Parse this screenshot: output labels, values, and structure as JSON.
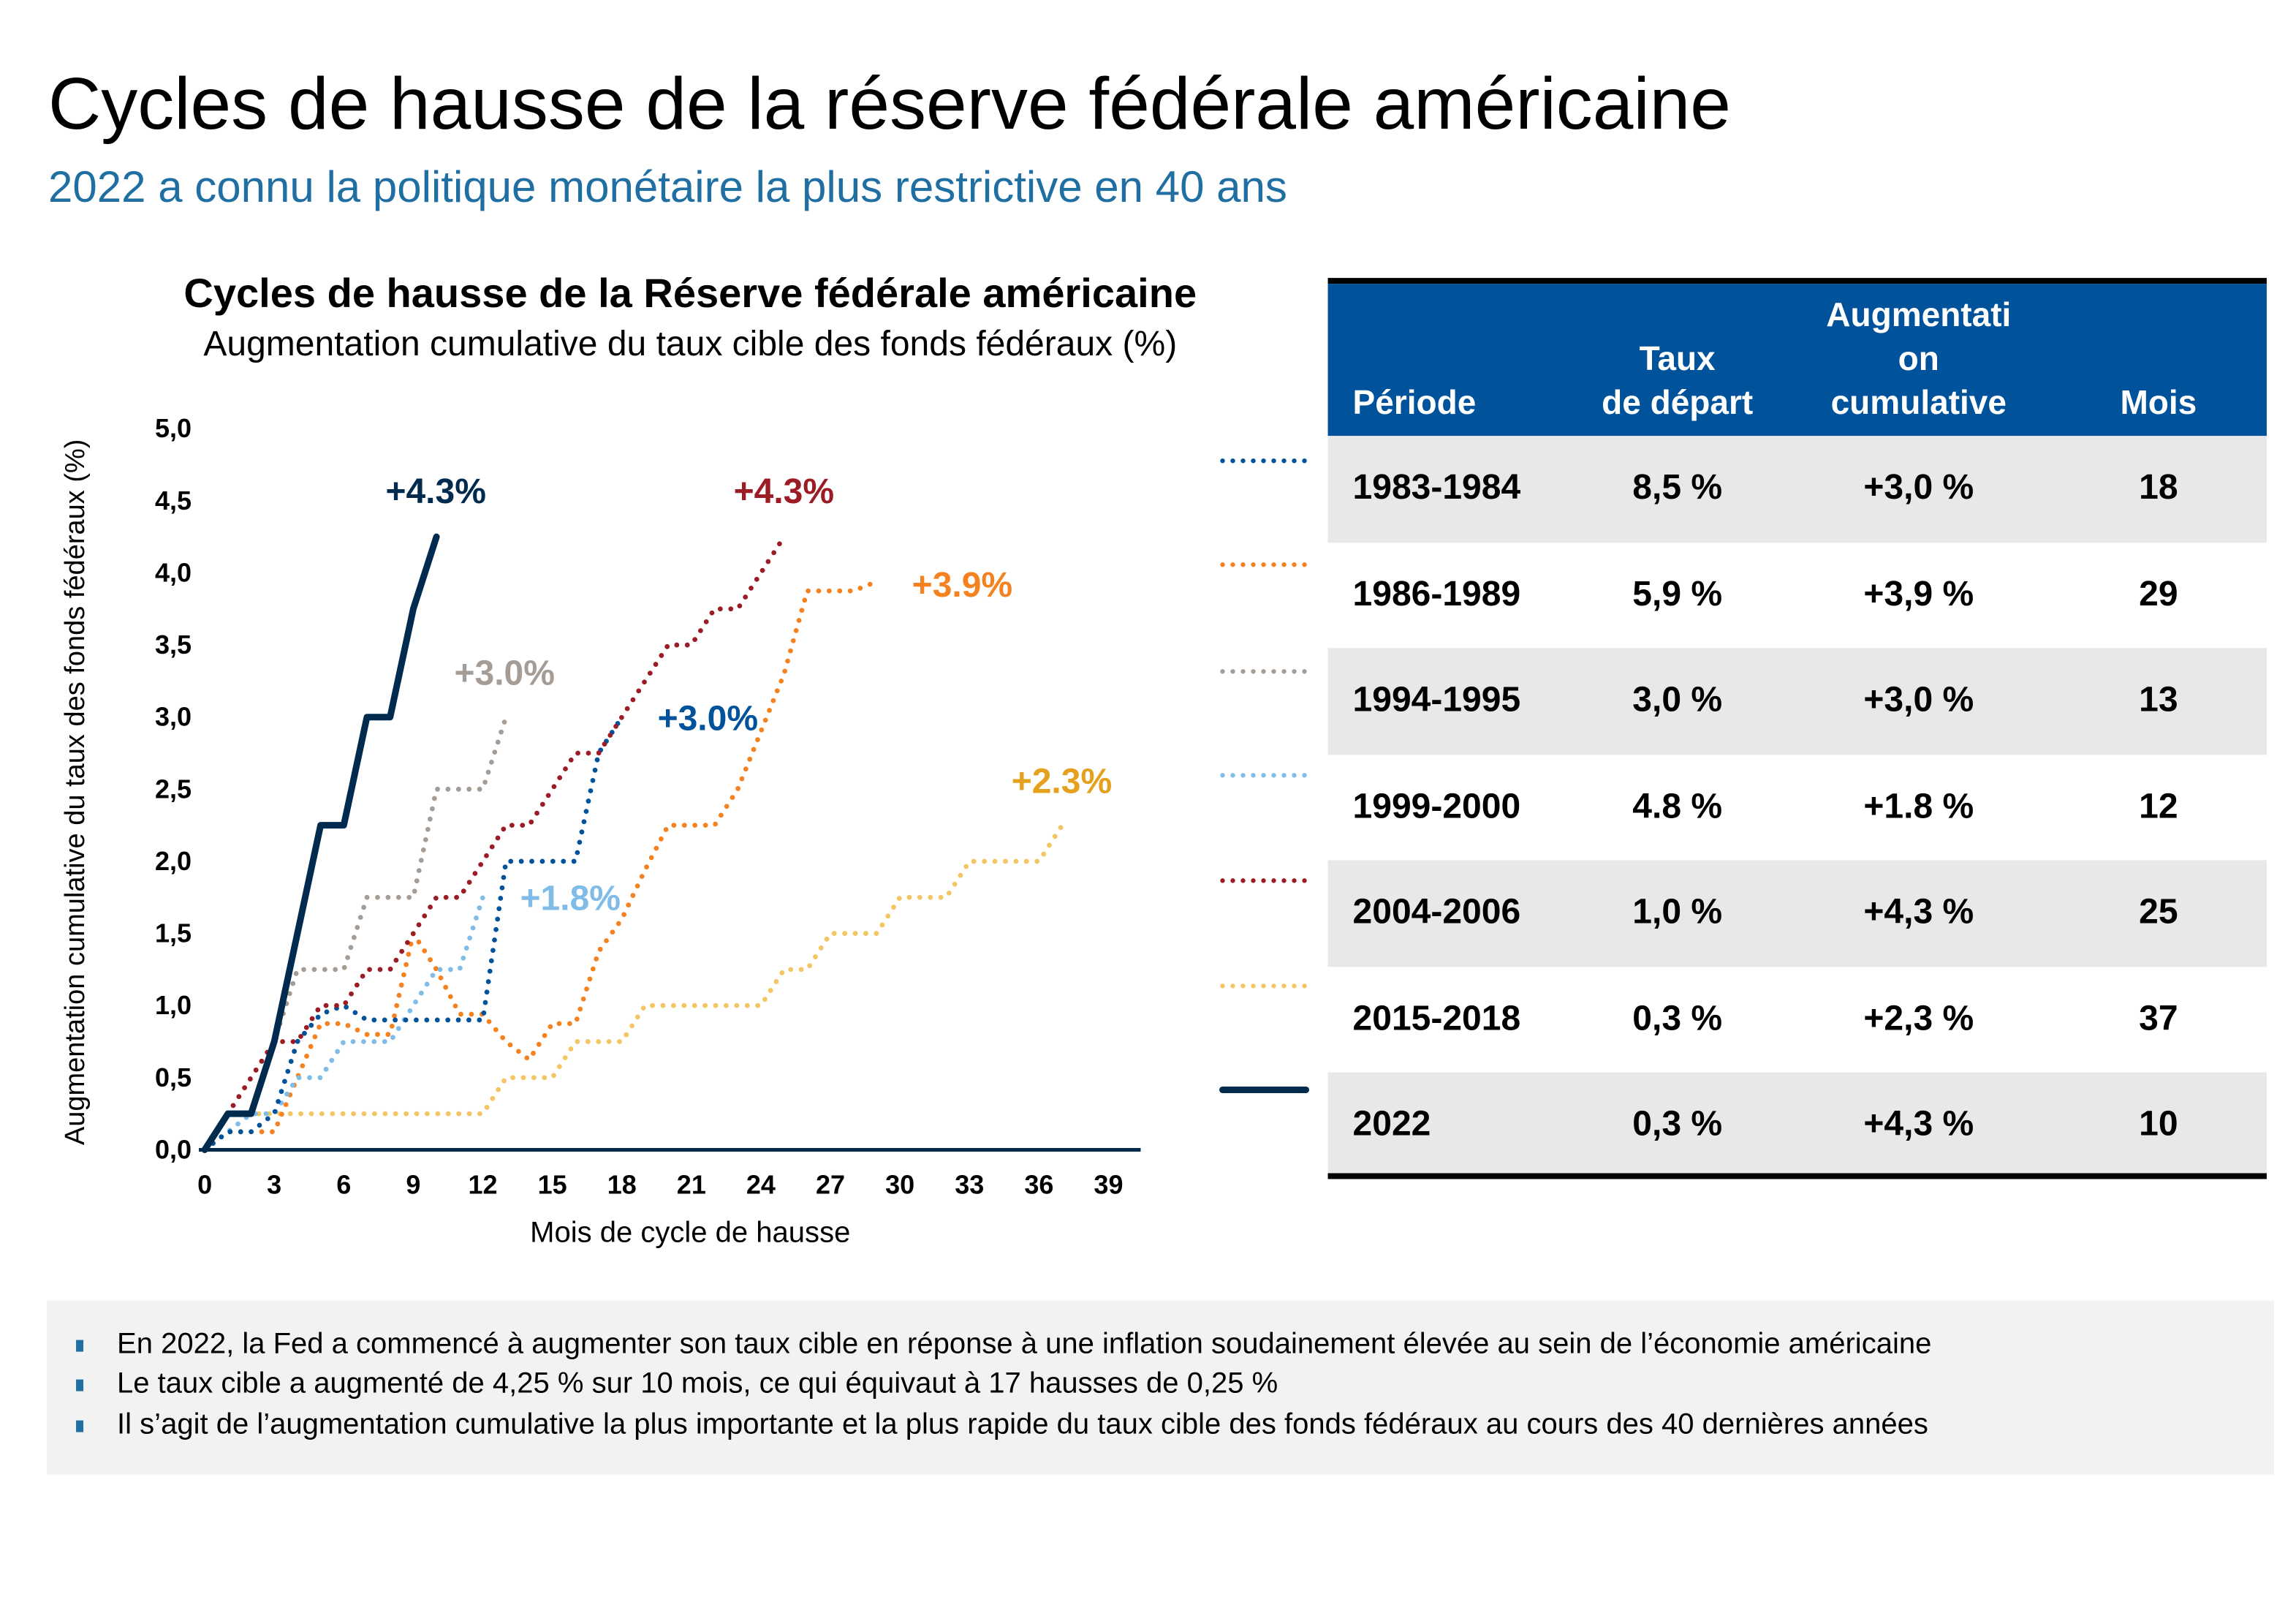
{
  "header": {
    "title": "Cycles de hausse de la réserve fédérale américaine",
    "subtitle": "2022 a connu la politique monétaire la plus restrictive en 40 ans"
  },
  "chart_data": {
    "type": "line",
    "title": "Cycles de hausse de la Réserve fédérale américaine",
    "subtitle": "Augmentation cumulative du taux cible des fonds fédéraux (%)",
    "xlabel": "Mois de cycle de hausse",
    "ylabel": "Augmentation cumulative du taux des fonds fédéraux (%)",
    "xlim": [
      0,
      39
    ],
    "ylim": [
      0,
      5
    ],
    "x_ticks": [
      "0",
      "3",
      "6",
      "9",
      "12",
      "15",
      "18",
      "21",
      "24",
      "27",
      "30",
      "33",
      "36",
      "39"
    ],
    "y_ticks": [
      "0,0",
      "0,5",
      "1,0",
      "1,5",
      "2,0",
      "2,5",
      "3,0",
      "3,5",
      "4,0",
      "4,5",
      "5,0"
    ],
    "grid": false,
    "series": [
      {
        "period": "1983-1984",
        "style": "dotted",
        "color": "#00529b",
        "label": "+3.0%",
        "label_color": "#00529b",
        "values": [
          0,
          0.125,
          0.125,
          0.25,
          0.75,
          0.94,
          1.0,
          0.9,
          0.9,
          0.9,
          0.9,
          0.9,
          0.9,
          2.0,
          2.0,
          2.0,
          2.0,
          2.75,
          3.0
        ]
      },
      {
        "period": "1986-1989",
        "style": "dotted",
        "color": "#f58220",
        "label": "+3.9%",
        "label_color": "#f58220",
        "values": [
          0,
          0.125,
          0.125,
          0.125,
          0.5,
          0.875,
          0.875,
          0.8,
          0.8,
          1.5,
          1.25,
          0.94,
          0.94,
          0.75,
          0.625,
          0.875,
          0.875,
          1.375,
          1.6,
          1.94,
          2.25,
          2.25,
          2.25,
          2.5,
          2.9,
          3.3,
          3.875,
          3.875,
          3.875,
          3.94
        ]
      },
      {
        "period": "1994-1995",
        "style": "dotted",
        "color": "#a59d95",
        "label": "+3.0%",
        "label_color": "#a59d95",
        "values": [
          0,
          0.25,
          0.5,
          0.75,
          1.25,
          1.25,
          1.25,
          1.75,
          1.75,
          1.75,
          2.5,
          2.5,
          2.5,
          3.0
        ]
      },
      {
        "period": "1999-2000",
        "style": "dotted",
        "color": "#7fbde8",
        "label": "+1.8%",
        "label_color": "#7fbde8",
        "values": [
          0,
          0.125,
          0.25,
          0.25,
          0.5,
          0.5,
          0.75,
          0.75,
          0.75,
          1.0,
          1.25,
          1.25,
          1.75
        ]
      },
      {
        "period": "2004-2006",
        "style": "dotted",
        "color": "#9b1c25",
        "label": "+4.3%",
        "label_color": "#9b1c25",
        "values": [
          0,
          0.25,
          0.5,
          0.75,
          0.75,
          1.0,
          1.0,
          1.25,
          1.25,
          1.5,
          1.75,
          1.75,
          2.0,
          2.25,
          2.25,
          2.5,
          2.75,
          2.75,
          3.0,
          3.25,
          3.5,
          3.5,
          3.75,
          3.75,
          4.0,
          4.25
        ]
      },
      {
        "period": "2015-2018",
        "style": "dotted",
        "color": "#f3c563",
        "label": "+2.3%",
        "label_color": "#e5a01e",
        "values": [
          0,
          0.25,
          0.25,
          0.25,
          0.25,
          0.25,
          0.25,
          0.25,
          0.25,
          0.25,
          0.25,
          0.25,
          0.25,
          0.5,
          0.5,
          0.5,
          0.75,
          0.75,
          0.75,
          1.0,
          1.0,
          1.0,
          1.0,
          1.0,
          1.0,
          1.25,
          1.25,
          1.5,
          1.5,
          1.5,
          1.75,
          1.75,
          1.75,
          2.0,
          2.0,
          2.0,
          2.0,
          2.25
        ]
      },
      {
        "period": "2022",
        "style": "solid",
        "color": "#002b4e",
        "label": "+4.3%",
        "label_color": "#002b4e",
        "values": [
          0,
          0.25,
          0.25,
          0.75,
          1.5,
          2.25,
          2.25,
          3.0,
          3.0,
          3.75,
          4.25
        ]
      }
    ]
  },
  "table": {
    "headers": {
      "period": "Période",
      "start_rate": [
        "Taux",
        "de départ"
      ],
      "increase": [
        "Augmentati",
        "on",
        "cumulative"
      ],
      "months": "Mois"
    },
    "rows": [
      {
        "period": "1983-1984",
        "start_rate": "8,5 %",
        "increase": "+3,0 %",
        "months": "18"
      },
      {
        "period": "1986-1989",
        "start_rate": "5,9 %",
        "increase": "+3,9 %",
        "months": "29"
      },
      {
        "period": "1994-1995",
        "start_rate": "3,0 %",
        "increase": "+3,0 %",
        "months": "13"
      },
      {
        "period": "1999-2000",
        "start_rate": "4.8 %",
        "increase": "+1.8 %",
        "months": "12"
      },
      {
        "period": "2004-2006",
        "start_rate": "1,0 %",
        "increase": "+4,3 %",
        "months": "25"
      },
      {
        "period": "2015-2018",
        "start_rate": "0,3 %",
        "increase": "+2,3 %",
        "months": "37"
      },
      {
        "period": "2022",
        "start_rate": "0,3 %",
        "increase": "+4,3 %",
        "months": "10"
      }
    ],
    "header_color": "#00539b",
    "alt_row_color": "#e8e8e8"
  },
  "footer": {
    "bullets": [
      "En 2022, la Fed a commencé à augmenter son taux cible en réponse à une inflation soudainement élevée au sein de l’économie américaine",
      "Le taux cible a augmenté de 4,25 % sur 10 mois, ce qui équivaut à 17 hausses de 0,25 %",
      "Il s’agit de l’augmentation cumulative la plus importante et la plus rapide du taux cible des fonds fédéraux au cours des 40 dernières années"
    ]
  }
}
